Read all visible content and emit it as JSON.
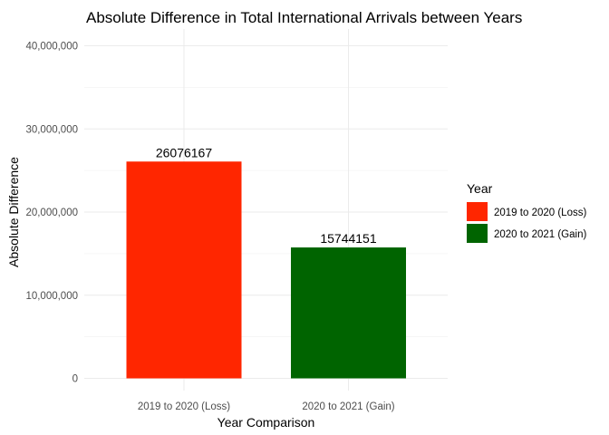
{
  "chart_data": {
    "type": "bar",
    "title": "Absolute Difference in Total International Arrivals between Years",
    "xlabel": "Year Comparison",
    "ylabel": "Absolute Difference",
    "categories": [
      "2019 to 2020 (Loss)",
      "2020 to 2021 (Gain)"
    ],
    "values": [
      26076167,
      15744151
    ],
    "data_labels": [
      "26076167",
      "15744151"
    ],
    "ylim": [
      0,
      40000000
    ],
    "yticks": [
      0,
      10000000,
      20000000,
      30000000,
      40000000
    ],
    "ytick_labels": [
      "0",
      "10,000,000",
      "20,000,000",
      "30,000,000",
      "40,000,000"
    ],
    "colors": [
      "#FF2600",
      "#006400"
    ],
    "grid": true,
    "legend": {
      "title": "Year",
      "position": "right",
      "entries": [
        {
          "label": "2019 to 2020 (Loss)",
          "color": "#FF2600"
        },
        {
          "label": "2020 to 2021 (Gain)",
          "color": "#006400"
        }
      ]
    }
  }
}
